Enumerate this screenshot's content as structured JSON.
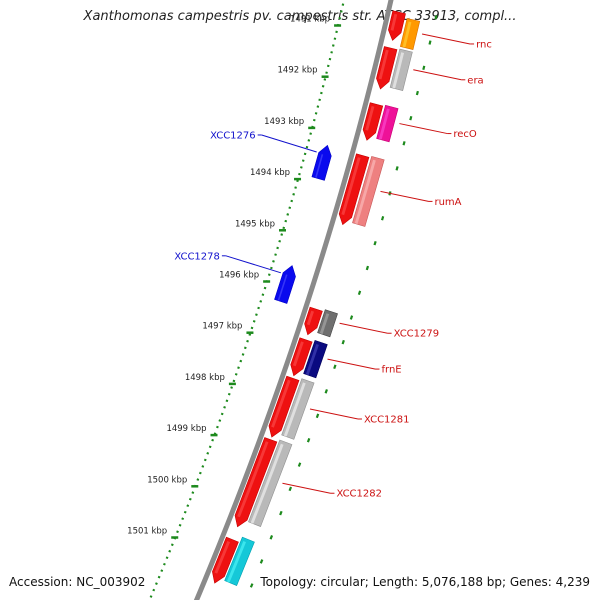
{
  "title": "Xanthomonas campestris pv. campestris str. ATCC 33913, compl...",
  "footer": {
    "accession": "Accession: NC_003902",
    "topology": "Topology: circular; Length: 5,076,188 bp; Genes: 4,239"
  },
  "colors": {
    "backbone": "#8a8a8a",
    "ruler": "#1d8a1d",
    "label_forward": "#cc1111",
    "label_reverse": "#1111cc",
    "cds": "#ee1111"
  },
  "ruler": {
    "labels": [
      "1491 kbp",
      "1492 kbp",
      "1493 kbp",
      "1494 kbp",
      "1495 kbp",
      "1496 kbp",
      "1497 kbp",
      "1498 kbp",
      "1499 kbp",
      "1500 kbp",
      "1501 kbp"
    ]
  },
  "features": {
    "cds": [
      {
        "kbp": 1490.75,
        "end_kbp": 1491.3
      },
      {
        "kbp": 1491.45,
        "end_kbp": 1492.25
      },
      {
        "kbp": 1492.55,
        "end_kbp": 1493.25
      },
      {
        "kbp": 1493.55,
        "end_kbp": 1494.9
      },
      {
        "kbp": 1496.55,
        "end_kbp": 1497.05
      },
      {
        "kbp": 1497.15,
        "end_kbp": 1497.85
      },
      {
        "kbp": 1497.9,
        "end_kbp": 1499.05
      },
      {
        "kbp": 1499.1,
        "end_kbp": 1500.8
      },
      {
        "kbp": 1501.05,
        "end_kbp": 1501.9
      }
    ],
    "forward_genes": [
      {
        "name": "rnc",
        "kbp": 1490.9,
        "end_kbp": 1491.45,
        "color": "#ff9900"
      },
      {
        "name": "era",
        "kbp": 1491.5,
        "end_kbp": 1492.25,
        "color": "#b9b9b9"
      },
      {
        "name": "recO",
        "kbp": 1492.6,
        "end_kbp": 1493.25,
        "color": "#ee1198"
      },
      {
        "name": "rumA",
        "kbp": 1493.6,
        "end_kbp": 1494.9,
        "color": "#ee8080"
      },
      {
        "name": "XCC1279",
        "kbp": 1496.6,
        "end_kbp": 1497.05,
        "color": "#6f6f6f"
      },
      {
        "name": "frnE",
        "kbp": 1497.2,
        "end_kbp": 1497.85,
        "color": "#0a0a80"
      },
      {
        "name": "XCC1281",
        "kbp": 1497.95,
        "end_kbp": 1499.05,
        "color": "#b9b9b9"
      },
      {
        "name": "XCC1282",
        "kbp": 1499.15,
        "end_kbp": 1500.75,
        "color": "#b9b9b9"
      },
      {
        "name": "",
        "kbp": 1501.05,
        "end_kbp": 1501.9,
        "color": "#15c8d8"
      }
    ],
    "reverse_genes": [
      {
        "name": "XCC1276",
        "kbp": 1493.35,
        "end_kbp": 1494.0,
        "color": "#0a0aee"
      },
      {
        "name": "XCC1278",
        "kbp": 1495.7,
        "end_kbp": 1496.4,
        "color": "#0a0aee"
      }
    ]
  }
}
